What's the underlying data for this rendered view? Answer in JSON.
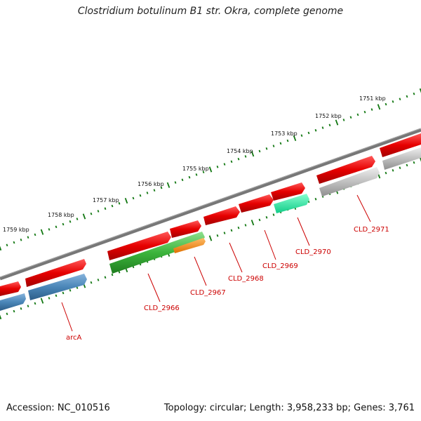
{
  "title": "Clostridium botulinum B1 str. Okra, complete genome",
  "footer": {
    "accession": "Accession: NC_010516",
    "summary": "Topology: circular; Length: 3,958,233 bp; Genes: 3,761"
  },
  "kbp_labels": [
    "1751 kbp",
    "1752 kbp",
    "1753 kbp",
    "1754 kbp",
    "1755 kbp",
    "1756 kbp",
    "1757 kbp",
    "1758 kbp",
    "1759 kbp"
  ],
  "gene_labels": [
    "CLD_2971",
    "CLD_2970",
    "CLD_2969",
    "CLD_2968",
    "CLD_2967",
    "CLD_2966",
    "arcA"
  ],
  "colors": {
    "backbone": "#777777",
    "forward_cds": "#e60000",
    "blue_cds": "#4a86b8",
    "green_cds": "#3cb43c",
    "orange_cds": "#ff8c00",
    "teal_cds": "#22dd99",
    "grey_cds": "#b8b8b8",
    "tick": "#117711",
    "label": "#cc0000"
  }
}
